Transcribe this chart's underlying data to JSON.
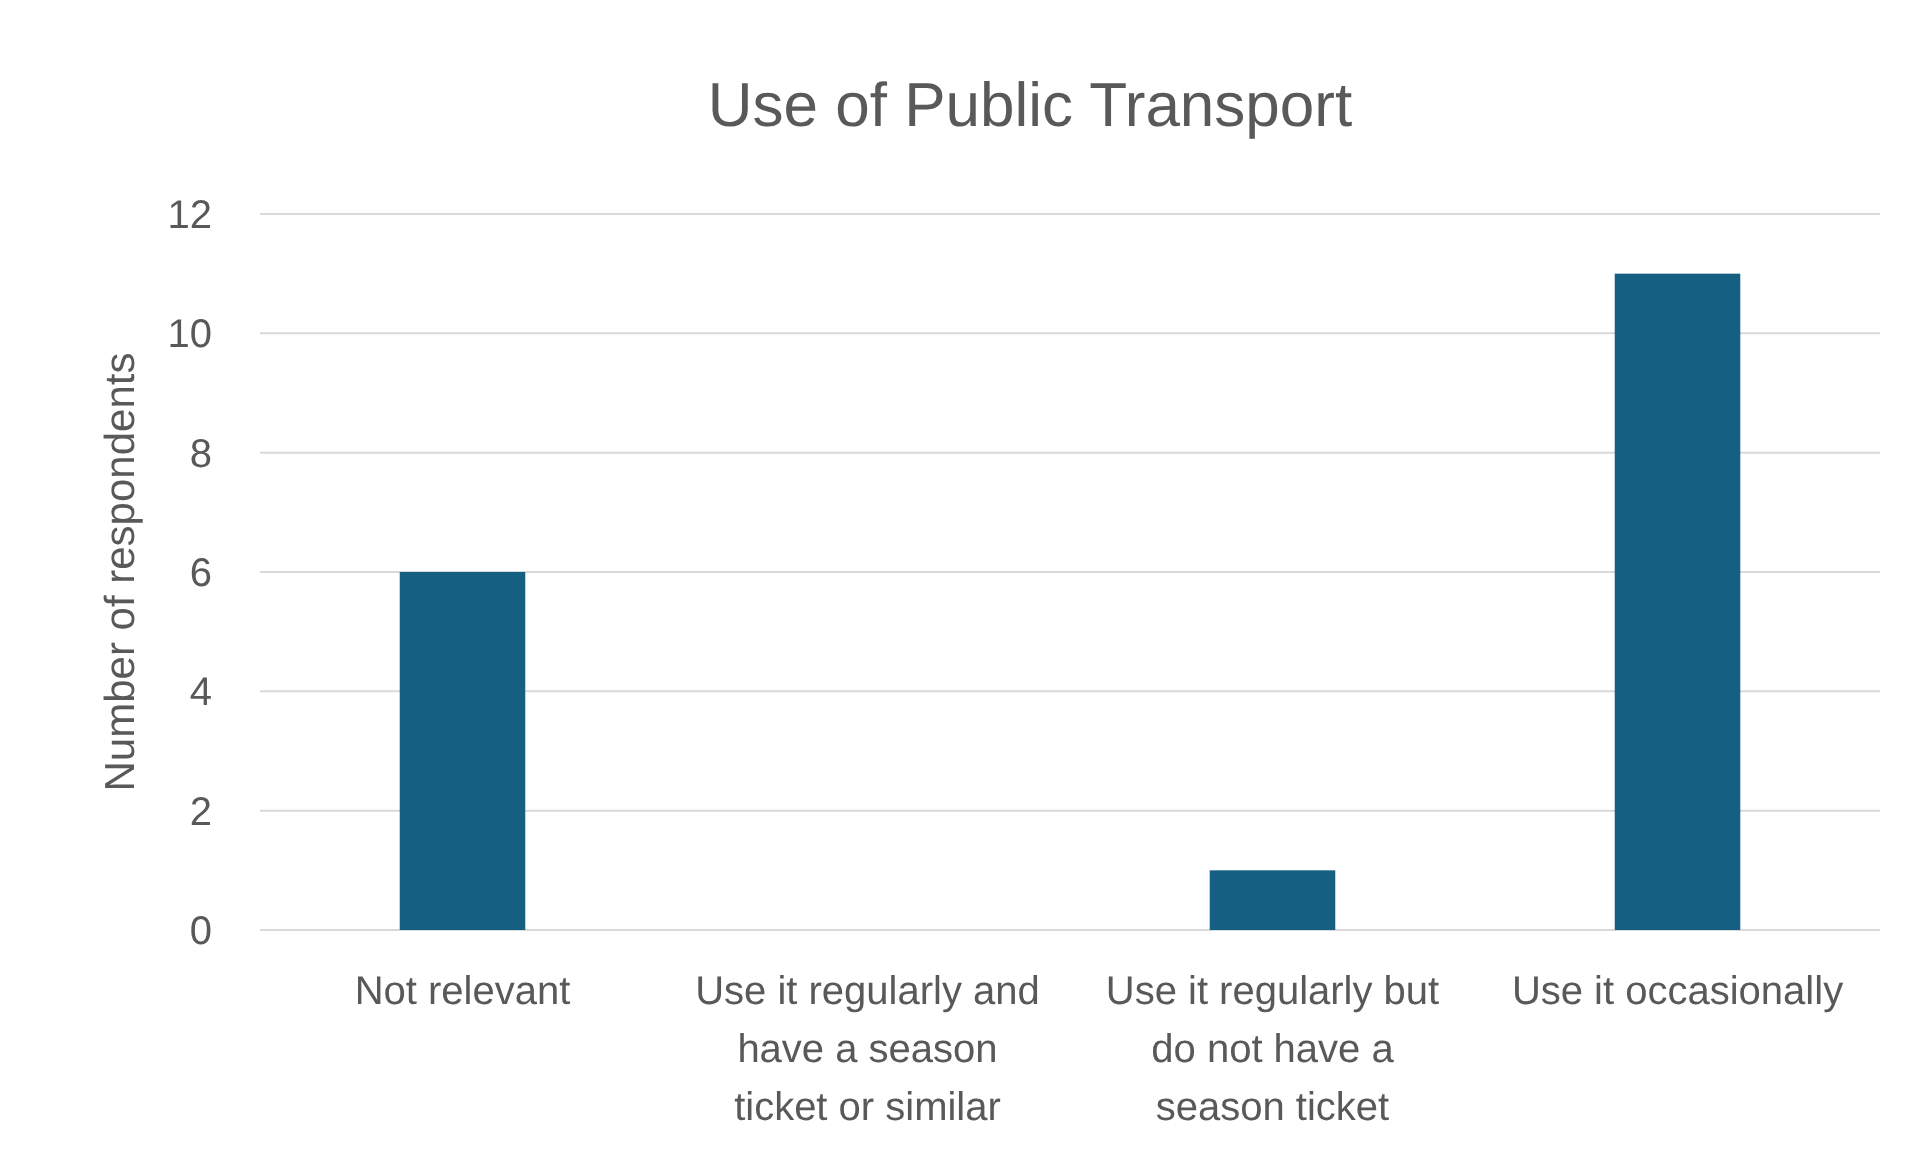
{
  "chart_data": {
    "type": "bar",
    "title": "Use of Public Transport",
    "ylabel": "Number of respondents",
    "categories": [
      "Not relevant",
      "Use it regularly and have a season ticket or similar",
      "Use it regularly but do not have a season ticket",
      "Use it occasionally"
    ],
    "values": [
      6,
      0,
      1,
      11
    ],
    "color": "#155f82",
    "ylim": [
      0,
      12
    ],
    "yticks": [
      0,
      2,
      4,
      6,
      8,
      10,
      12
    ],
    "grid": "y"
  }
}
